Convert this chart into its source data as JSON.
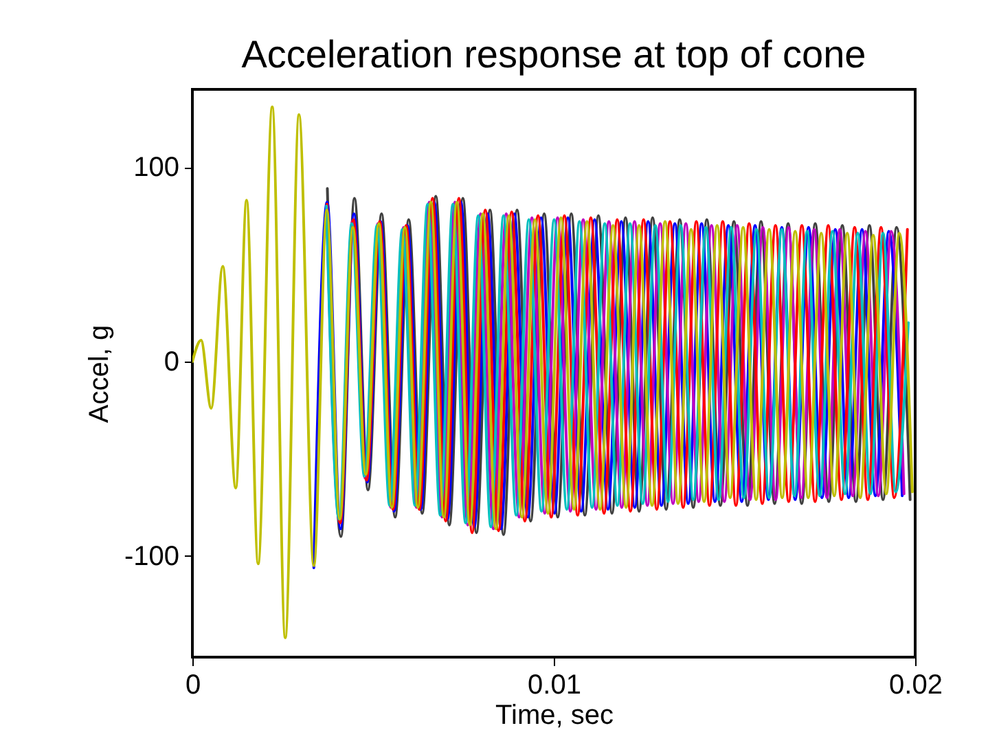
{
  "chart_data": {
    "type": "line",
    "title": "Acceleration response at top of cone",
    "xlabel": "Time, sec",
    "ylabel": "Accel, g",
    "xlim": [
      0,
      0.02
    ],
    "ylim": [
      -152,
      140
    ],
    "xticks": [
      0,
      0.01,
      0.02
    ],
    "yticks": [
      -100,
      0,
      100
    ],
    "grid": false,
    "series": [
      {
        "color": "#404040",
        "x": [
          0.003735,
          0.00411,
          0.004485,
          0.00486,
          0.005235,
          0.00561,
          0.005985,
          0.00636,
          0.006735,
          0.00711,
          0.007485,
          0.00786,
          0.008235,
          0.00861,
          0.008985,
          0.00936,
          0.009735,
          0.01011,
          0.010485,
          0.01086,
          0.011235,
          0.01161,
          0.011985,
          0.01236,
          0.012735,
          0.01311,
          0.013485,
          0.01386,
          0.014235,
          0.01461,
          0.014985,
          0.01536,
          0.015735,
          0.01611,
          0.016485,
          0.01686,
          0.017235,
          0.01761,
          0.017985,
          0.01836,
          0.018735,
          0.01911,
          0.019485,
          0.01986
        ],
        "values": [
          89,
          -90,
          84,
          -66,
          76,
          -80,
          73,
          -78,
          85,
          -84,
          84,
          -88,
          78,
          -89,
          78,
          -82,
          76,
          -80,
          76,
          -79,
          75,
          -78,
          74,
          -77,
          74,
          -76,
          73,
          -75,
          73,
          -74,
          72,
          -74,
          72,
          -73,
          71,
          -73,
          71,
          -72,
          70,
          -72,
          70,
          -71,
          69,
          -71
        ]
      },
      {
        "color": "#0000ff",
        "x": [
          0.00336,
          0.00373,
          0.0041,
          0.00447,
          0.00484,
          0.00521,
          0.00558,
          0.00595,
          0.00632,
          0.00669,
          0.00706,
          0.00743,
          0.0078,
          0.00817,
          0.00854,
          0.00891,
          0.00928,
          0.00965,
          0.01002,
          0.01039,
          0.01076,
          0.01113,
          0.0115,
          0.01187,
          0.01224,
          0.01261,
          0.01298,
          0.01335,
          0.01372,
          0.01409,
          0.01446,
          0.01483,
          0.0152,
          0.01557,
          0.01594,
          0.01631,
          0.01668,
          0.01705,
          0.01742,
          0.01779,
          0.01816,
          0.01853,
          0.0189,
          0.01927,
          0.01964
        ],
        "values": [
          -106,
          82,
          -86,
          76,
          -62,
          72,
          -77,
          70,
          -76,
          82,
          -81,
          82,
          -85,
          76,
          -86,
          76,
          -80,
          74,
          -78,
          74,
          -77,
          73,
          -76,
          72,
          -75,
          72,
          -74,
          71,
          -73,
          71,
          -72,
          70,
          -72,
          70,
          -71,
          69,
          -71,
          69,
          -70,
          68,
          -70,
          68,
          -69,
          67,
          -69
        ]
      },
      {
        "color": "#bf00bf",
        "x": [
          0.003715,
          0.00407,
          0.004425,
          0.00478,
          0.005135,
          0.00549,
          0.005845,
          0.0062,
          0.006555,
          0.00691,
          0.007265,
          0.00762,
          0.007975,
          0.00833,
          0.008685,
          0.00904,
          0.009395,
          0.00975,
          0.010105,
          0.01046,
          0.010815,
          0.01117,
          0.011525,
          0.01188,
          0.012235,
          0.01259,
          0.012945,
          0.0133,
          0.013655,
          0.01401,
          0.014365,
          0.01472,
          0.015075,
          0.01543,
          0.015785,
          0.01614,
          0.016495,
          0.01685,
          0.017205,
          0.01756,
          0.017915,
          0.01827,
          0.018625,
          0.01898,
          0.019335,
          0.01969
        ],
        "values": [
          80,
          -82,
          72,
          -60,
          71,
          -75,
          69,
          -75,
          82,
          -80,
          82,
          -84,
          76,
          -86,
          76,
          -80,
          74,
          -78,
          74,
          -77,
          73,
          -76,
          72,
          -75,
          72,
          -74,
          71,
          -73,
          71,
          -72,
          70,
          -72,
          70,
          -71,
          69,
          -71,
          69,
          -70,
          68,
          -70,
          68,
          -69,
          67,
          -69,
          67,
          -68
        ]
      },
      {
        "color": "#ff0000",
        "x": [
          0.003725,
          0.00409,
          0.004455,
          0.00482,
          0.005185,
          0.00555,
          0.005915,
          0.00628,
          0.006645,
          0.00701,
          0.007375,
          0.00774,
          0.008105,
          0.00847,
          0.008835,
          0.0092,
          0.009565,
          0.00993,
          0.010295,
          0.01066,
          0.011025,
          0.01139,
          0.011755,
          0.01212,
          0.012485,
          0.01285,
          0.013215,
          0.01358,
          0.013945,
          0.01431,
          0.014675,
          0.01504,
          0.015405,
          0.01577,
          0.016135,
          0.0165,
          0.016865,
          0.01723,
          0.017595,
          0.01796,
          0.018325,
          0.01869,
          0.019055,
          0.01942,
          0.019785
        ],
        "values": [
          81,
          -83,
          73,
          -61,
          72,
          -76,
          70,
          -76,
          84,
          -82,
          84,
          -88,
          78,
          -87,
          77,
          -82,
          75,
          -80,
          75,
          -79,
          74,
          -78,
          73,
          -77,
          73,
          -76,
          72,
          -75,
          72,
          -74,
          72,
          -74,
          71,
          -73,
          70,
          -72,
          70,
          -72,
          70,
          -71,
          69,
          -71,
          69,
          -70,
          68
        ]
      },
      {
        "color": "#00bfbf",
        "x": [
          0.00371,
          0.00406,
          0.00441,
          0.00476,
          0.00511,
          0.00546,
          0.00581,
          0.00616,
          0.00651,
          0.00686,
          0.00721,
          0.00756,
          0.00791,
          0.00826,
          0.00861,
          0.00896,
          0.00931,
          0.00966,
          0.01001,
          0.01036,
          0.01071,
          0.01106,
          0.01141,
          0.01176,
          0.01211,
          0.01246,
          0.01281,
          0.01316,
          0.01351,
          0.01386,
          0.01421,
          0.01456,
          0.01491,
          0.01526,
          0.01561,
          0.01596,
          0.01631,
          0.01666,
          0.01701,
          0.01736,
          0.01771,
          0.01806,
          0.01841,
          0.01876,
          0.01911,
          0.01946,
          0.01981
        ],
        "values": [
          80,
          -81,
          71,
          -59,
          70,
          -74,
          68,
          -74,
          81,
          -79,
          81,
          -83,
          75,
          -85,
          75,
          -79,
          73,
          -77,
          73,
          -76,
          72,
          -75,
          71,
          -74,
          71,
          -73,
          70,
          -72,
          70,
          -71,
          69,
          -71,
          69,
          -70,
          68,
          -70,
          68,
          -69,
          67,
          -69,
          67,
          -68,
          66,
          -68,
          66,
          -67,
          20
        ]
      },
      {
        "color": "#bfbf00",
        "x": [
          0,
          0.00024,
          0.00052,
          0.00084,
          0.0012,
          0.0015,
          0.00182,
          0.00221,
          0.00257,
          0.00295,
          0.00336,
          0.00372,
          0.00408,
          0.00444,
          0.0048,
          0.00516,
          0.00552,
          0.00588,
          0.00624,
          0.0066,
          0.00696,
          0.00732,
          0.00768,
          0.00804,
          0.0084,
          0.00876,
          0.00912,
          0.00948,
          0.00984,
          0.0102,
          0.01056,
          0.01092,
          0.01128,
          0.01164,
          0.012,
          0.01236,
          0.01272,
          0.01308,
          0.01344,
          0.0138,
          0.01416,
          0.01452,
          0.01488,
          0.01524,
          0.0156,
          0.01596,
          0.01632,
          0.01668,
          0.01704,
          0.0174,
          0.01776,
          0.01812,
          0.01848,
          0.01884,
          0.0192,
          0.01956,
          0.01992
        ],
        "values": [
          0,
          11,
          -24,
          49,
          -65,
          83,
          -104,
          131,
          -142,
          127,
          -105,
          78,
          -81,
          69,
          -58,
          71,
          -75,
          69,
          -75,
          82,
          -80,
          82,
          -84,
          76,
          -86,
          75,
          -80,
          73,
          -78,
          74,
          -76,
          72,
          -76,
          70,
          -75,
          70,
          -74,
          72,
          -73,
          68,
          -72,
          70,
          -70,
          69,
          -71,
          68,
          -70,
          67,
          -70,
          66,
          -69,
          66,
          -70,
          65,
          -68,
          66,
          -67
        ]
      }
    ]
  }
}
